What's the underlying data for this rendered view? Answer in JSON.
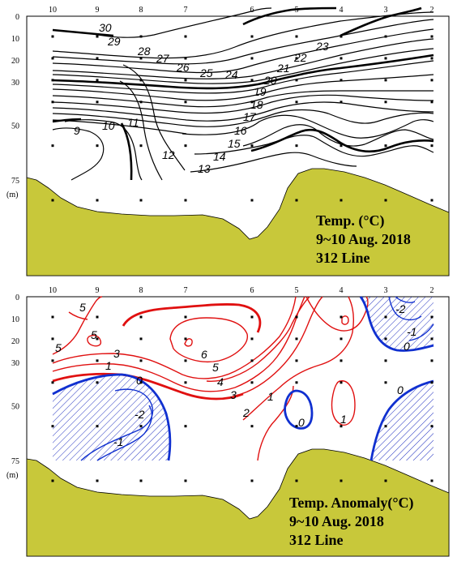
{
  "colors": {
    "seabed": "#c8c83a",
    "positive_contour": "#e01010",
    "negative_contour": "#1030d0",
    "hatch": "#2030c0"
  },
  "chart_data": [
    {
      "type": "contour",
      "stations": [
        "10",
        "9",
        "8",
        "7",
        "6",
        "5",
        "4",
        "3",
        "2"
      ],
      "depth_ticks": [
        "0",
        "10",
        "20",
        "30",
        "50",
        "75"
      ],
      "depth_unit": "(m)",
      "ylim": [
        0,
        75
      ],
      "contour_levels": [
        "30",
        "29",
        "28",
        "27",
        "26",
        "25",
        "24",
        "23",
        "22",
        "21",
        "20",
        "19",
        "18",
        "17",
        "16",
        "15",
        "14",
        "13",
        "12",
        "11",
        "10",
        "9"
      ],
      "caption": [
        "Temp. (°C)",
        "9~10 Aug. 2018",
        "312 Line"
      ]
    },
    {
      "type": "contour",
      "stations": [
        "10",
        "9",
        "8",
        "7",
        "6",
        "5",
        "4",
        "3",
        "2"
      ],
      "depth_ticks": [
        "0",
        "10",
        "20",
        "30",
        "50",
        "75"
      ],
      "depth_unit": "(m)",
      "ylim": [
        0,
        75
      ],
      "contour_levels": [
        "-2",
        "-1",
        "0",
        "1",
        "2",
        "3",
        "4",
        "5",
        "6"
      ],
      "caption": [
        "Temp. Anomaly(°C)",
        "9~10 Aug. 2018",
        "312 Line"
      ]
    }
  ]
}
